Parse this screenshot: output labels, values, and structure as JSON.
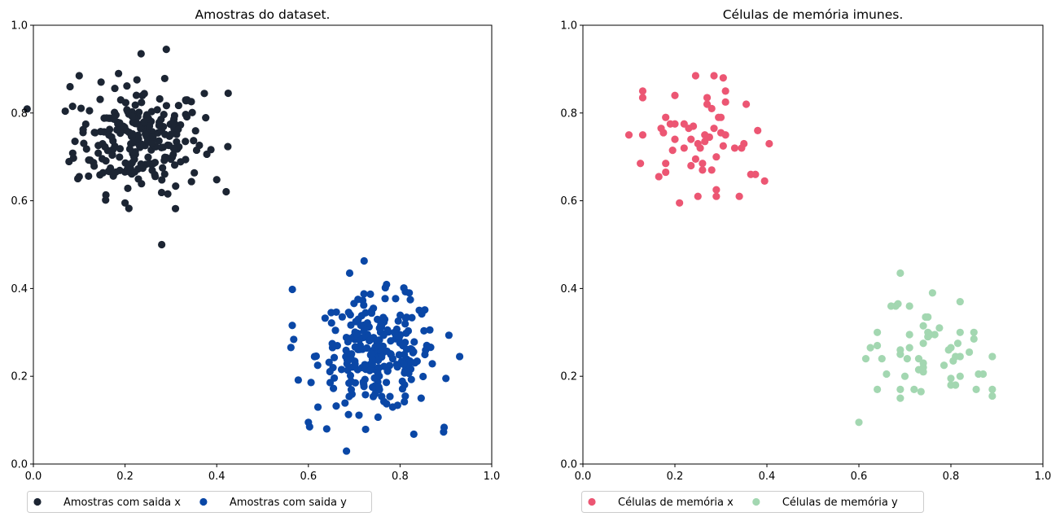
{
  "chart_data": [
    {
      "type": "scatter",
      "title": "Amostras do dataset.",
      "xlim": [
        0,
        1
      ],
      "ylim": [
        0,
        1
      ],
      "xticks": [
        "0.0",
        "0.2",
        "0.4",
        "0.6",
        "0.8",
        "1.0"
      ],
      "yticks": [
        "0.0",
        "0.2",
        "0.4",
        "0.6",
        "0.8",
        "1.0"
      ],
      "grid": false,
      "legend": {
        "placement": "below-left",
        "ncol": 2
      },
      "series": [
        {
          "name": "Amostras com saida x",
          "color": "#1c2533",
          "count": 250,
          "center": [
            0.23,
            0.74
          ],
          "spread": [
            0.07,
            0.06
          ],
          "points": [
            [
              0.08,
              0.86
            ],
            [
              0.1,
              0.885
            ],
            [
              0.235,
              0.935
            ],
            [
              0.29,
              0.945
            ],
            [
              0.425,
              0.845
            ],
            [
              0.28,
              0.5
            ],
            [
              0.2,
              0.595
            ],
            [
              0.31,
              0.582
            ],
            [
              0.1,
              0.655
            ],
            [
              0.4,
              0.648
            ]
          ]
        },
        {
          "name": "Amostras com saida y",
          "color": "#0a47a6",
          "count": 250,
          "center": [
            0.75,
            0.25
          ],
          "spread": [
            0.065,
            0.065
          ],
          "points": [
            [
              0.565,
              0.398
            ],
            [
              0.568,
              0.284
            ],
            [
              0.69,
              0.435
            ],
            [
              0.6,
              0.095
            ],
            [
              0.64,
              0.08
            ],
            [
              0.83,
              0.068
            ],
            [
              0.895,
              0.073
            ],
            [
              0.93,
              0.245
            ],
            [
              0.9,
              0.195
            ],
            [
              0.82,
              0.39
            ]
          ]
        }
      ]
    },
    {
      "type": "scatter",
      "title": "Células de memória imunes.",
      "xlim": [
        0,
        1
      ],
      "ylim": [
        0,
        1
      ],
      "xticks": [
        "0.0",
        "0.2",
        "0.4",
        "0.6",
        "0.8",
        "1.0"
      ],
      "yticks": [
        "0.0",
        "0.2",
        "0.4",
        "0.6",
        "0.8",
        "1.0"
      ],
      "grid": false,
      "legend": {
        "placement": "below-left",
        "ncol": 2
      },
      "series": [
        {
          "name": "Células de memória x",
          "color": "#ec5673",
          "points": [
            [
              0.1,
              0.75
            ],
            [
              0.13,
              0.85
            ],
            [
              0.13,
              0.835
            ],
            [
              0.13,
              0.75
            ],
            [
              0.125,
              0.685
            ],
            [
              0.165,
              0.655
            ],
            [
              0.18,
              0.665
            ],
            [
              0.18,
              0.685
            ],
            [
              0.17,
              0.765
            ],
            [
              0.175,
              0.755
            ],
            [
              0.19,
              0.775
            ],
            [
              0.2,
              0.775
            ],
            [
              0.195,
              0.715
            ],
            [
              0.2,
              0.74
            ],
            [
              0.2,
              0.84
            ],
            [
              0.22,
              0.775
            ],
            [
              0.22,
              0.72
            ],
            [
              0.23,
              0.765
            ],
            [
              0.235,
              0.74
            ],
            [
              0.24,
              0.77
            ],
            [
              0.245,
              0.885
            ],
            [
              0.245,
              0.695
            ],
            [
              0.25,
              0.61
            ],
            [
              0.25,
              0.73
            ],
            [
              0.255,
              0.72
            ],
            [
              0.26,
              0.685
            ],
            [
              0.26,
              0.67
            ],
            [
              0.265,
              0.75
            ],
            [
              0.27,
              0.82
            ],
            [
              0.27,
              0.835
            ],
            [
              0.275,
              0.745
            ],
            [
              0.28,
              0.67
            ],
            [
              0.28,
              0.81
            ],
            [
              0.285,
              0.885
            ],
            [
              0.29,
              0.61
            ],
            [
              0.29,
              0.625
            ],
            [
              0.29,
              0.7
            ],
            [
              0.295,
              0.79
            ],
            [
              0.3,
              0.755
            ],
            [
              0.3,
              0.79
            ],
            [
              0.305,
              0.725
            ],
            [
              0.305,
              0.88
            ],
            [
              0.31,
              0.85
            ],
            [
              0.31,
              0.825
            ],
            [
              0.31,
              0.75
            ],
            [
              0.33,
              0.72
            ],
            [
              0.34,
              0.61
            ],
            [
              0.345,
              0.72
            ],
            [
              0.35,
              0.73
            ],
            [
              0.355,
              0.82
            ],
            [
              0.365,
              0.66
            ],
            [
              0.375,
              0.66
            ],
            [
              0.38,
              0.76
            ],
            [
              0.395,
              0.645
            ],
            [
              0.405,
              0.73
            ],
            [
              0.21,
              0.595
            ],
            [
              0.235,
              0.68
            ],
            [
              0.265,
              0.735
            ],
            [
              0.18,
              0.79
            ],
            [
              0.285,
              0.765
            ]
          ]
        },
        {
          "name": "Células de memória y",
          "color": "#a3d7b1",
          "points": [
            [
              0.6,
              0.095
            ],
            [
              0.615,
              0.24
            ],
            [
              0.625,
              0.265
            ],
            [
              0.64,
              0.27
            ],
            [
              0.64,
              0.3
            ],
            [
              0.64,
              0.17
            ],
            [
              0.65,
              0.24
            ],
            [
              0.66,
              0.205
            ],
            [
              0.67,
              0.36
            ],
            [
              0.68,
              0.36
            ],
            [
              0.685,
              0.365
            ],
            [
              0.69,
              0.435
            ],
            [
              0.69,
              0.25
            ],
            [
              0.69,
              0.26
            ],
            [
              0.69,
              0.17
            ],
            [
              0.69,
              0.15
            ],
            [
              0.7,
              0.2
            ],
            [
              0.705,
              0.24
            ],
            [
              0.71,
              0.36
            ],
            [
              0.71,
              0.295
            ],
            [
              0.71,
              0.265
            ],
            [
              0.72,
              0.17
            ],
            [
              0.73,
              0.24
            ],
            [
              0.73,
              0.215
            ],
            [
              0.735,
              0.165
            ],
            [
              0.74,
              0.21
            ],
            [
              0.74,
              0.22
            ],
            [
              0.74,
              0.23
            ],
            [
              0.74,
              0.275
            ],
            [
              0.74,
              0.315
            ],
            [
              0.745,
              0.335
            ],
            [
              0.75,
              0.335
            ],
            [
              0.75,
              0.3
            ],
            [
              0.75,
              0.29
            ],
            [
              0.755,
              0.295
            ],
            [
              0.76,
              0.39
            ],
            [
              0.765,
              0.295
            ],
            [
              0.775,
              0.31
            ],
            [
              0.785,
              0.225
            ],
            [
              0.795,
              0.26
            ],
            [
              0.8,
              0.265
            ],
            [
              0.8,
              0.195
            ],
            [
              0.8,
              0.18
            ],
            [
              0.805,
              0.235
            ],
            [
              0.81,
              0.245
            ],
            [
              0.81,
              0.18
            ],
            [
              0.815,
              0.275
            ],
            [
              0.82,
              0.2
            ],
            [
              0.82,
              0.245
            ],
            [
              0.82,
              0.37
            ],
            [
              0.82,
              0.3
            ],
            [
              0.84,
              0.255
            ],
            [
              0.85,
              0.3
            ],
            [
              0.85,
              0.285
            ],
            [
              0.855,
              0.17
            ],
            [
              0.86,
              0.205
            ],
            [
              0.87,
              0.205
            ],
            [
              0.89,
              0.245
            ],
            [
              0.89,
              0.17
            ],
            [
              0.89,
              0.155
            ]
          ]
        }
      ]
    }
  ]
}
